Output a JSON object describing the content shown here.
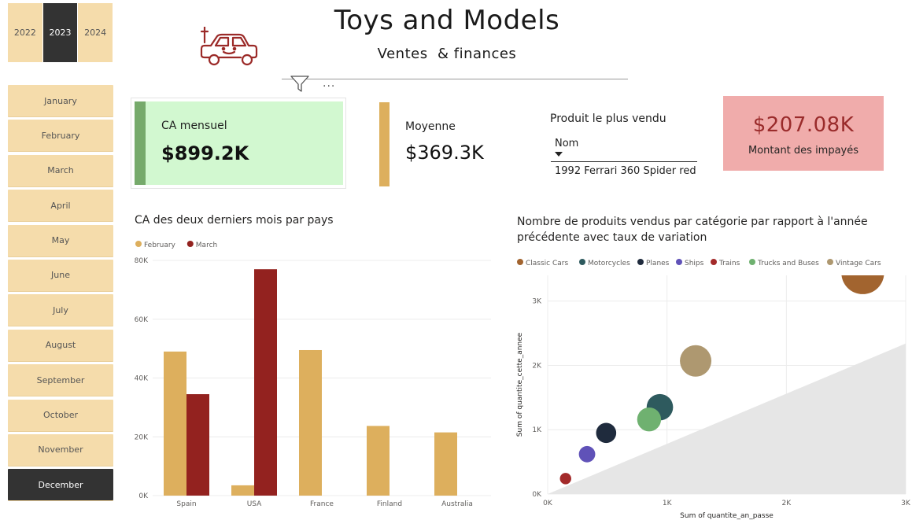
{
  "header": {
    "title": "Toys and Models",
    "subtitle": "Ventes  & finances",
    "more_label": "..."
  },
  "years": [
    {
      "label": "2022",
      "active": false
    },
    {
      "label": "2023",
      "active": true
    },
    {
      "label": "2024",
      "active": false
    }
  ],
  "months": [
    {
      "label": "January",
      "active": false
    },
    {
      "label": "February",
      "active": false
    },
    {
      "label": "March",
      "active": false
    },
    {
      "label": "April",
      "active": false
    },
    {
      "label": "May",
      "active": false
    },
    {
      "label": "June",
      "active": false
    },
    {
      "label": "July",
      "active": false
    },
    {
      "label": "August",
      "active": false
    },
    {
      "label": "September",
      "active": false
    },
    {
      "label": "October",
      "active": false
    },
    {
      "label": "November",
      "active": false
    },
    {
      "label": "December",
      "active": true
    }
  ],
  "kpis": {
    "monthly": {
      "label": "CA mensuel",
      "value": "$899.2K"
    },
    "average": {
      "label": "Moyenne",
      "value": "$369.3K"
    },
    "top_product": {
      "label": "Produit le plus vendu",
      "field": "Nom",
      "value": "1992 Ferrari 360 Spider red"
    },
    "unpaid": {
      "label": "Montant des impayés",
      "value": "$207.08K"
    }
  },
  "colors": {
    "kpi_green_fill": "#d2f8d0",
    "kpi_green_accent": "#76aa6b",
    "gold": "#ddaf5d",
    "dark_red": "#93221f",
    "unpaid_fill": "#f0acab",
    "slicer_fill": "#f5dcab",
    "slicer_active": "#333333"
  },
  "icons": {
    "logo": "toy-car-icon",
    "filter": "filter-icon",
    "more": "more-options-icon"
  },
  "chart_data": [
    {
      "type": "bar",
      "title": "CA des deux derniers mois par pays",
      "categories": [
        "Spain",
        "USA",
        "France",
        "Finland",
        "Australia"
      ],
      "series": [
        {
          "name": "February",
          "color": "#ddaf5d",
          "values": [
            49000,
            3500,
            49500,
            23700,
            21500
          ]
        },
        {
          "name": "March",
          "color": "#93221f",
          "values": [
            34500,
            77000,
            0,
            0,
            0
          ]
        }
      ],
      "ylim": [
        0,
        80000
      ],
      "yticks": [
        0,
        20000,
        40000,
        60000,
        80000
      ],
      "ytick_labels": [
        "0K",
        "20K",
        "40K",
        "60K",
        "80K"
      ],
      "legend": "top-left",
      "grid": true
    },
    {
      "type": "scatter",
      "title": "Nombre de produits vendus par catégorie par rapport à l'année précédente avec taux de variation",
      "xlabel": "Sum of quantite_an_passe",
      "ylabel": "Sum of quantite_cette_annee",
      "xlim": [
        0,
        3000
      ],
      "ylim": [
        0,
        3400
      ],
      "xticks": [
        0,
        1000,
        2000,
        3000
      ],
      "xtick_labels": [
        "0K",
        "1K",
        "2K",
        "3K"
      ],
      "yticks": [
        0,
        1000,
        2000,
        3000
      ],
      "ytick_labels": [
        "0K",
        "1K",
        "2K",
        "3K"
      ],
      "legend": "top-left",
      "grid": true,
      "series": [
        {
          "name": "Classic Cars",
          "color": "#a2642f",
          "x": 2640,
          "y": 3440,
          "size": 3.4
        },
        {
          "name": "Motorcycles",
          "color": "#2e5a5e",
          "x": 940,
          "y": 1350,
          "size": 2.1
        },
        {
          "name": "Planes",
          "color": "#1f2b3d",
          "x": 490,
          "y": 950,
          "size": 1.6
        },
        {
          "name": "Ships",
          "color": "#6052b8",
          "x": 330,
          "y": 620,
          "size": 1.3
        },
        {
          "name": "Trains",
          "color": "#a32a2a",
          "x": 150,
          "y": 240,
          "size": 0.9
        },
        {
          "name": "Trucks and Buses",
          "color": "#6fb170",
          "x": 850,
          "y": 1160,
          "size": 1.9
        },
        {
          "name": "Vintage Cars",
          "color": "#ae9870",
          "x": 1240,
          "y": 2070,
          "size": 2.5
        }
      ]
    }
  ]
}
